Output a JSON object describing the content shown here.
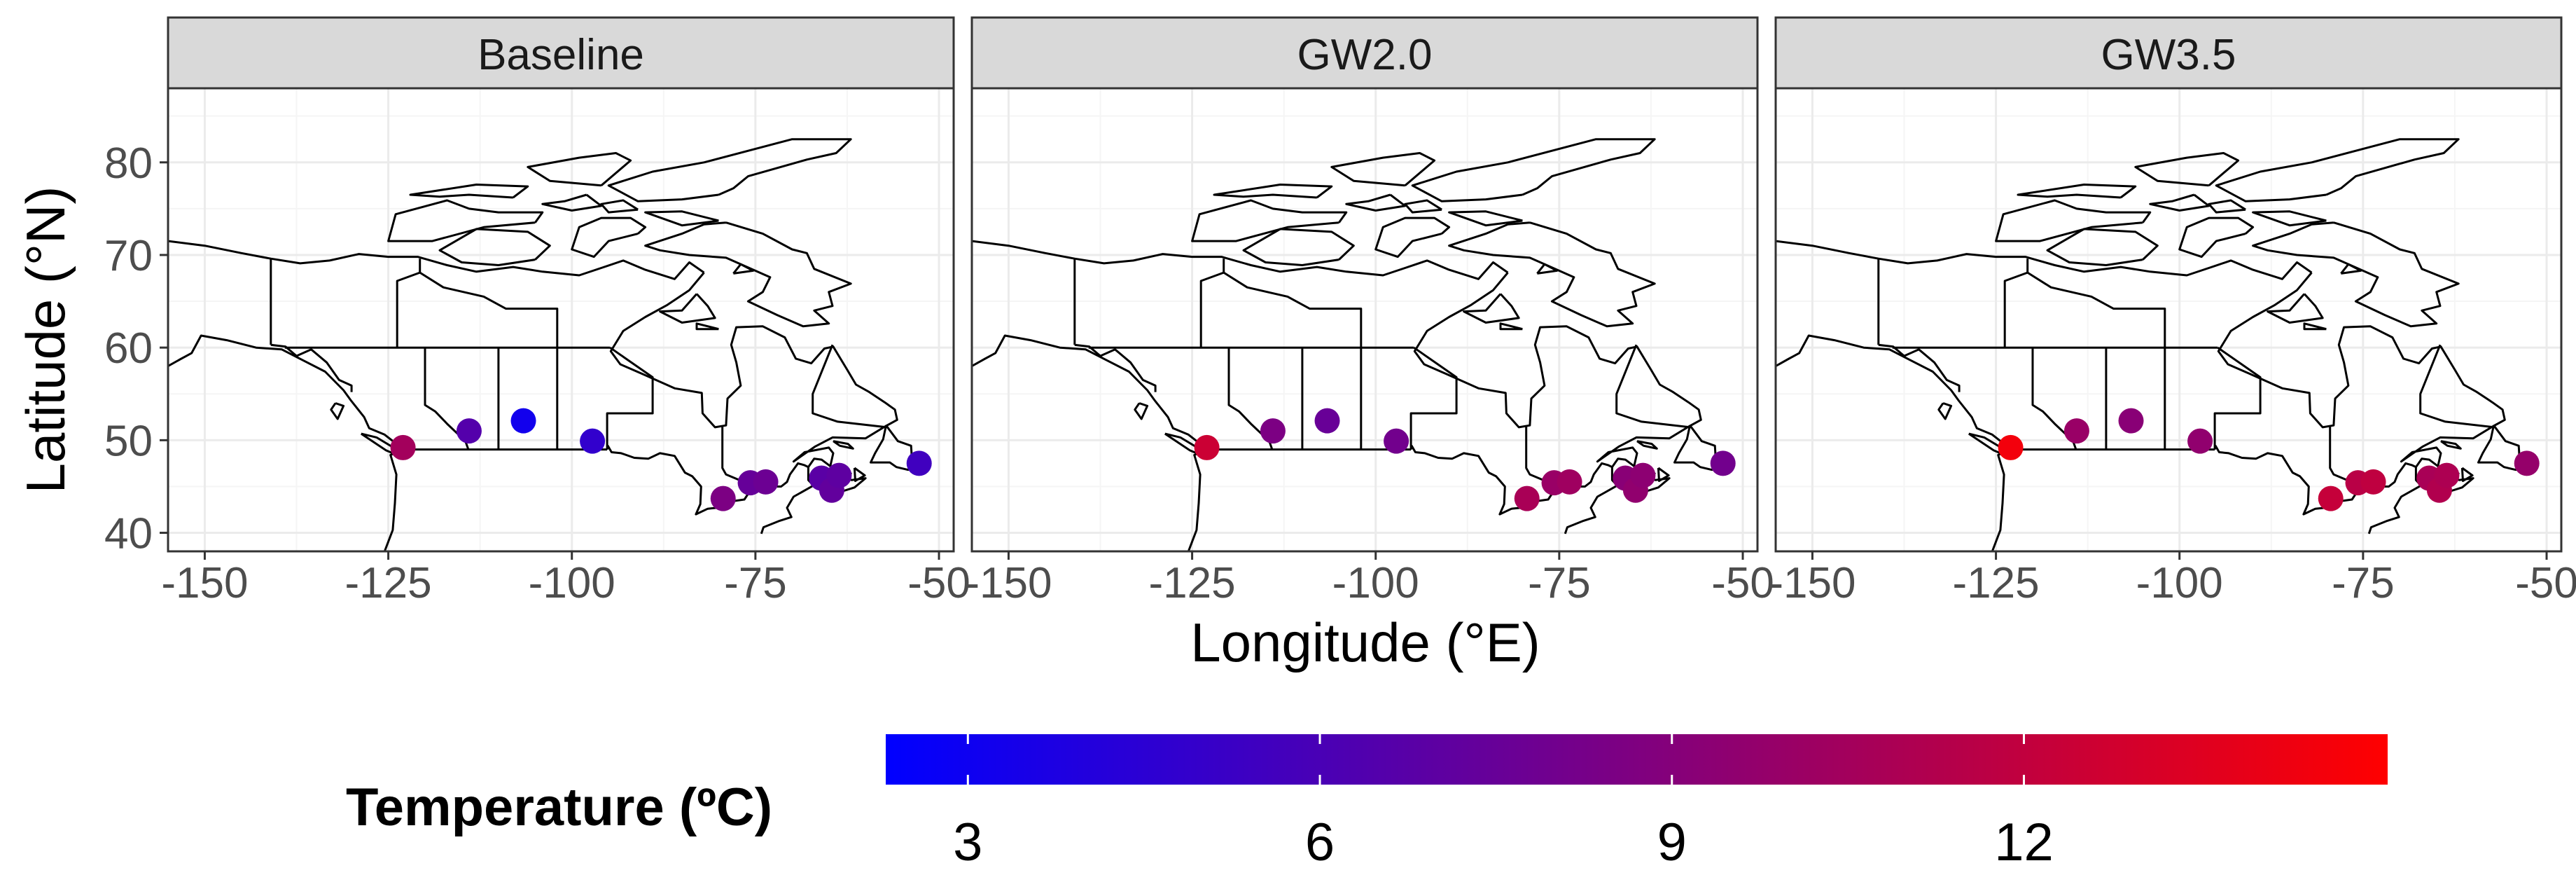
{
  "chart_data": {
    "type": "scatter",
    "title": "",
    "xlabel": "Longitude (°E)",
    "ylabel": "Latitude (°N)",
    "xlim": [
      -155,
      -48
    ],
    "ylim": [
      38,
      88
    ],
    "x_ticks": [
      -150,
      -125,
      -100,
      -75,
      -50
    ],
    "x_tick_labels": [
      "-150",
      "-125",
      "-100",
      "-75",
      "-50"
    ],
    "y_ticks": [
      40,
      50,
      60,
      70,
      80
    ],
    "y_tick_labels": [
      "40",
      "50",
      "60",
      "70",
      "80"
    ],
    "panels": [
      {
        "name": "Baseline",
        "points": [
          {
            "lon": -123,
            "lat": 49.2,
            "temp": 10.5
          },
          {
            "lon": -114,
            "lat": 51.0,
            "temp": 6.5
          },
          {
            "lon": -106.6,
            "lat": 52.1,
            "temp": 3.2
          },
          {
            "lon": -97.2,
            "lat": 49.9,
            "temp": 4.8
          },
          {
            "lon": -79.4,
            "lat": 43.7,
            "temp": 8.5
          },
          {
            "lon": -75.7,
            "lat": 45.4,
            "temp": 7.4
          },
          {
            "lon": -73.6,
            "lat": 45.5,
            "temp": 7.7
          },
          {
            "lon": -66.0,
            "lat": 45.9,
            "temp": 6.8
          },
          {
            "lon": -64.6,
            "lat": 44.6,
            "temp": 7.2
          },
          {
            "lon": -63.6,
            "lat": 46.2,
            "temp": 7.0
          },
          {
            "lon": -52.7,
            "lat": 47.5,
            "temp": 5.5
          }
        ]
      },
      {
        "name": "GW2.0",
        "points": [
          {
            "lon": -123,
            "lat": 49.2,
            "temp": 12.5
          },
          {
            "lon": -114,
            "lat": 51.0,
            "temp": 8.5
          },
          {
            "lon": -106.6,
            "lat": 52.1,
            "temp": 7.5
          },
          {
            "lon": -97.2,
            "lat": 49.9,
            "temp": 8.0
          },
          {
            "lon": -79.4,
            "lat": 43.7,
            "temp": 10.8
          },
          {
            "lon": -75.7,
            "lat": 45.4,
            "temp": 10.0
          },
          {
            "lon": -73.6,
            "lat": 45.5,
            "temp": 10.3
          },
          {
            "lon": -66.0,
            "lat": 45.9,
            "temp": 9.2
          },
          {
            "lon": -64.6,
            "lat": 44.6,
            "temp": 9.6
          },
          {
            "lon": -63.6,
            "lat": 46.2,
            "temp": 9.4
          },
          {
            "lon": -52.7,
            "lat": 47.5,
            "temp": 8.0
          }
        ]
      },
      {
        "name": "GW3.5",
        "points": [
          {
            "lon": -123,
            "lat": 49.2,
            "temp": 14.5
          },
          {
            "lon": -114,
            "lat": 51.0,
            "temp": 10.0
          },
          {
            "lon": -106.6,
            "lat": 52.1,
            "temp": 9.2
          },
          {
            "lon": -97.2,
            "lat": 49.9,
            "temp": 9.6
          },
          {
            "lon": -79.4,
            "lat": 43.7,
            "temp": 12.2
          },
          {
            "lon": -75.7,
            "lat": 45.4,
            "temp": 11.6
          },
          {
            "lon": -73.6,
            "lat": 45.5,
            "temp": 11.9
          },
          {
            "lon": -66.0,
            "lat": 45.9,
            "temp": 10.8
          },
          {
            "lon": -64.6,
            "lat": 44.6,
            "temp": 11.2
          },
          {
            "lon": -63.6,
            "lat": 46.2,
            "temp": 11.0
          },
          {
            "lon": -52.7,
            "lat": 47.5,
            "temp": 9.8
          }
        ]
      }
    ],
    "legend": {
      "title": "Temperature (ºC)",
      "placement": "bottom",
      "range": [
        2.3,
        15.1
      ],
      "ticks": [
        3,
        6,
        9,
        12
      ],
      "tick_labels": [
        "3",
        "6",
        "9",
        "12"
      ],
      "color_low": "#0000FF",
      "color_high": "#FF0000"
    }
  },
  "colors": {
    "strip_fill": "#D9D9D9",
    "strip_border": "#333333",
    "grid_major": "#EBEBEB",
    "grid_minor": "#F5F5F5",
    "border": "#333333",
    "coastline": "#000000"
  }
}
